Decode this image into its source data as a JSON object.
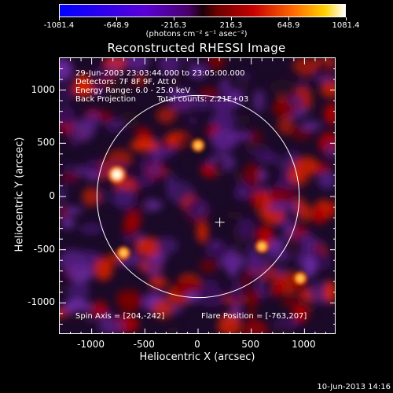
{
  "colorbar": {
    "ticks": [
      "-1081.4",
      "-648.9",
      "-216.3",
      "216.3",
      "648.9",
      "1081.4"
    ],
    "units": "(photons cm⁻² s⁻¹ asec⁻²)"
  },
  "title": "Reconstructed RHESSI Image",
  "info": {
    "time": "29-Jun-2003 23:03:44.000 to 23:05:00.000",
    "detectors": "Detectors: 7F 8F 9F, Att 0",
    "energy": "Energy Range: 6.0 - 25.0 keV",
    "method": "Back Projection",
    "counts": "Total counts: 2.21E+03",
    "spin_axis": "Spin Axis = [204,-242]",
    "flare_position": "Flare Position = [-763,207]"
  },
  "chart_data": {
    "type": "heatmap",
    "title": "Reconstructed RHESSI Image",
    "xlabel": "Heliocentric X (arcsec)",
    "ylabel": "Heliocentric Y (arcsec)",
    "xlim": [
      -1300,
      1300
    ],
    "ylim": [
      -1300,
      1300
    ],
    "x_ticks": [
      "-1000",
      "-500",
      "0",
      "500",
      "1000"
    ],
    "y_ticks": [
      "1000",
      "500",
      "0",
      "-500",
      "-1000"
    ],
    "colorbar_range": [
      -1081.4,
      1081.4
    ],
    "solar_limb_radius": 950,
    "crosshair": [
      204,
      -242
    ],
    "bright_sources": [
      {
        "x": -763,
        "y": 207
      },
      {
        "x": 960,
        "y": -770
      },
      {
        "x": 0,
        "y": 480
      },
      {
        "x": -700,
        "y": -530
      },
      {
        "x": 600,
        "y": -470
      }
    ]
  },
  "timestamp": "10-Jun-2013 14:16"
}
